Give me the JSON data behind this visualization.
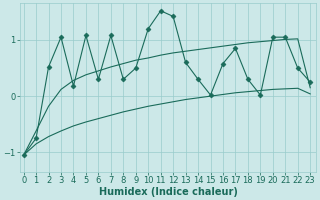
{
  "xlabel": "Humidex (Indice chaleur)",
  "bg_color": "#cce8e8",
  "line_color": "#1a6b5a",
  "grid_color": "#99cccc",
  "x_ticks": [
    0,
    1,
    2,
    3,
    4,
    5,
    6,
    7,
    8,
    9,
    10,
    11,
    12,
    13,
    14,
    15,
    16,
    17,
    18,
    19,
    20,
    21,
    22,
    23
  ],
  "x_min": -0.3,
  "x_max": 23.5,
  "y_min": -1.35,
  "y_max": 1.65,
  "y_ticks": [
    -1,
    0,
    1
  ],
  "upper_line_y": [
    -1.05,
    -0.62,
    -0.18,
    0.12,
    0.28,
    0.38,
    0.45,
    0.52,
    0.58,
    0.64,
    0.68,
    0.73,
    0.77,
    0.8,
    0.83,
    0.86,
    0.89,
    0.92,
    0.95,
    0.97,
    0.99,
    1.01,
    1.02,
    0.15
  ],
  "lower_line_y": [
    -1.05,
    -0.85,
    -0.72,
    -0.62,
    -0.53,
    -0.46,
    -0.4,
    -0.34,
    -0.28,
    -0.23,
    -0.18,
    -0.14,
    -0.1,
    -0.06,
    -0.03,
    0.0,
    0.03,
    0.06,
    0.08,
    0.1,
    0.12,
    0.13,
    0.14,
    0.04
  ],
  "mid_line_y": [
    -1.05,
    -0.75,
    0.52,
    1.05,
    0.18,
    1.08,
    0.3,
    1.08,
    0.3,
    0.5,
    1.2,
    1.52,
    1.42,
    0.6,
    0.3,
    0.02,
    0.58,
    0.85,
    0.3,
    0.02,
    1.05,
    1.05,
    0.5,
    0.25
  ],
  "marker_style": "D",
  "marker_size": 2.5
}
